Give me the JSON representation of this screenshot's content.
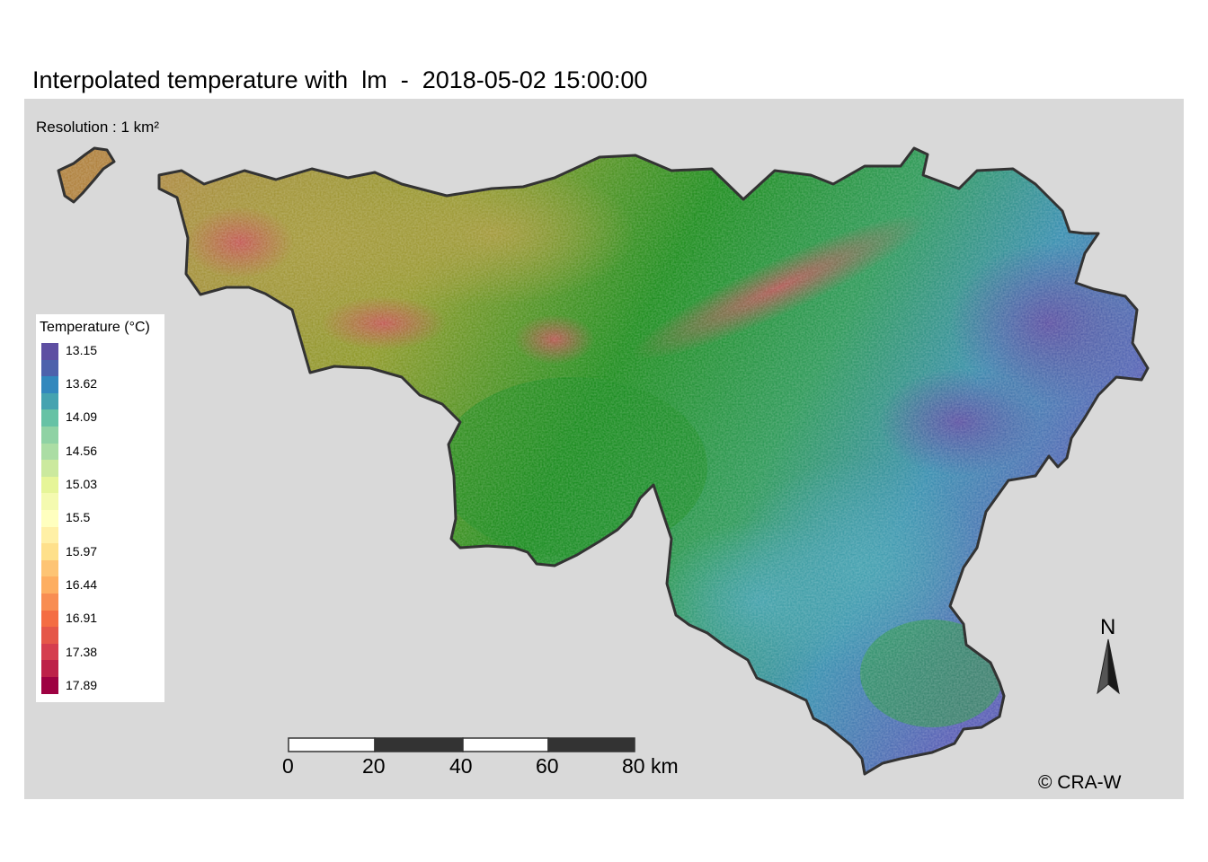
{
  "title": "Interpolated temperature with  lm  -  2018-05-02 15:00:00",
  "resolution_note": "Resolution : 1 km²",
  "legend": {
    "title": "Temperature (°C)",
    "labels": [
      "13.15",
      "13.62",
      "14.09",
      "14.56",
      "15.03",
      "15.5",
      "15.97",
      "16.44",
      "16.91",
      "17.38",
      "17.89"
    ],
    "colors": [
      "#5e4fa2",
      "#4d62ac",
      "#3288bd",
      "#45a3b0",
      "#66c2a5",
      "#8fd2a4",
      "#abdda4",
      "#cbe99e",
      "#e6f598",
      "#f4fab0",
      "#ffffbf",
      "#fff0a6",
      "#fee08b",
      "#fdc474",
      "#fdae61",
      "#f88d52",
      "#f46d43",
      "#e55749",
      "#d53e4f",
      "#bd2149",
      "#9e0142"
    ]
  },
  "scale_bar": {
    "labels": [
      "0",
      "20",
      "40",
      "60",
      "80 km"
    ]
  },
  "north_arrow": {
    "label": "N",
    "icon": "north-arrow-icon"
  },
  "copyright": "© CRA-W",
  "colors": {
    "panel_background": "#d9d9d9",
    "border": "#333333",
    "cold": "#5e4fa2",
    "mid": "#1a8c20",
    "warm": "#9e0142"
  }
}
